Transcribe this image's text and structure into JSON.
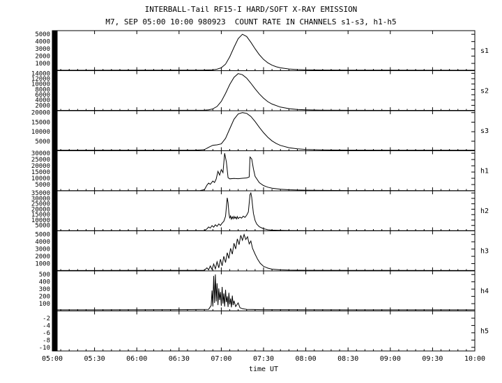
{
  "titles": {
    "line1": "INTERBALL-Tail RF15-I HARD/SOFT X-RAY EMISSION",
    "line2": "M7, SEP 05:00 10:00 980923  COUNT RATE IN CHANNELS s1-s3, h1-h5"
  },
  "colors": {
    "line": "#000000",
    "background": "#ffffff"
  },
  "chart_data": {
    "type": "line",
    "title": "INTERBALL-Tail RF15-I HARD/SOFT X-RAY EMISSION",
    "subtitle": "M7, SEP 05:00 10:00 980923  COUNT RATE IN CHANNELS s1-s3, h1-h5",
    "xlabel": "time UT",
    "x_range": [
      5,
      10
    ],
    "x_tick_hours": [
      5,
      5.5,
      6,
      6.5,
      7,
      7.5,
      8,
      8.5,
      9,
      9.5,
      10
    ],
    "x_tick_labels": [
      "05:00",
      "05:30",
      "06:00",
      "06:30",
      "07:00",
      "07:30",
      "08:00",
      "08:30",
      "09:00",
      "09:30",
      "10:00"
    ],
    "grid": false,
    "legend": "panel labels on right side",
    "panels": [
      {
        "label": "s1",
        "ylim": [
          0,
          5500
        ],
        "yticks": [
          1000,
          2000,
          3000,
          4000,
          5000
        ],
        "left_bar": true,
        "points": [
          [
            5.0,
            60
          ],
          [
            5.5,
            60
          ],
          [
            6.0,
            65
          ],
          [
            6.5,
            70
          ],
          [
            6.8,
            85
          ],
          [
            6.9,
            120
          ],
          [
            6.95,
            200
          ],
          [
            7.0,
            400
          ],
          [
            7.05,
            900
          ],
          [
            7.1,
            1900
          ],
          [
            7.15,
            3200
          ],
          [
            7.2,
            4400
          ],
          [
            7.25,
            5000
          ],
          [
            7.3,
            4700
          ],
          [
            7.35,
            3900
          ],
          [
            7.4,
            3000
          ],
          [
            7.45,
            2200
          ],
          [
            7.5,
            1550
          ],
          [
            7.55,
            1080
          ],
          [
            7.6,
            760
          ],
          [
            7.65,
            540
          ],
          [
            7.7,
            390
          ],
          [
            7.8,
            230
          ],
          [
            7.9,
            150
          ],
          [
            8.0,
            110
          ],
          [
            8.2,
            85
          ],
          [
            8.5,
            72
          ],
          [
            9.0,
            65
          ],
          [
            9.5,
            62
          ],
          [
            10.0,
            60
          ]
        ]
      },
      {
        "label": "s2",
        "ylim": [
          0,
          15000
        ],
        "yticks": [
          2000,
          4000,
          6000,
          8000,
          10000,
          12000,
          14000
        ],
        "left_bar": true,
        "points": [
          [
            5.0,
            130
          ],
          [
            5.5,
            130
          ],
          [
            6.0,
            140
          ],
          [
            6.5,
            150
          ],
          [
            6.8,
            200
          ],
          [
            6.85,
            350
          ],
          [
            6.9,
            700
          ],
          [
            6.95,
            1600
          ],
          [
            7.0,
            3500
          ],
          [
            7.05,
            6500
          ],
          [
            7.1,
            9800
          ],
          [
            7.15,
            12500
          ],
          [
            7.2,
            13900
          ],
          [
            7.25,
            13500
          ],
          [
            7.3,
            12200
          ],
          [
            7.35,
            10300
          ],
          [
            7.4,
            8200
          ],
          [
            7.45,
            6300
          ],
          [
            7.5,
            4700
          ],
          [
            7.55,
            3400
          ],
          [
            7.6,
            2500
          ],
          [
            7.7,
            1350
          ],
          [
            7.8,
            780
          ],
          [
            7.9,
            480
          ],
          [
            8.0,
            330
          ],
          [
            8.2,
            220
          ],
          [
            8.5,
            165
          ],
          [
            9.0,
            140
          ],
          [
            9.5,
            135
          ],
          [
            10.0,
            130
          ]
        ]
      },
      {
        "label": "s3",
        "ylim": [
          0,
          21000
        ],
        "yticks": [
          5000,
          10000,
          15000,
          20000
        ],
        "left_bar": true,
        "points": [
          [
            5.0,
            260
          ],
          [
            5.5,
            260
          ],
          [
            6.0,
            270
          ],
          [
            6.5,
            290
          ],
          [
            6.7,
            330
          ],
          [
            6.8,
            600
          ],
          [
            6.85,
            1800
          ],
          [
            6.9,
            2900
          ],
          [
            6.95,
            3100
          ],
          [
            7.0,
            3600
          ],
          [
            7.05,
            6500
          ],
          [
            7.1,
            11500
          ],
          [
            7.15,
            16500
          ],
          [
            7.2,
            19300
          ],
          [
            7.25,
            20000
          ],
          [
            7.3,
            19600
          ],
          [
            7.35,
            18000
          ],
          [
            7.4,
            15300
          ],
          [
            7.45,
            12300
          ],
          [
            7.5,
            9500
          ],
          [
            7.55,
            7100
          ],
          [
            7.6,
            5200
          ],
          [
            7.65,
            3800
          ],
          [
            7.7,
            2800
          ],
          [
            7.8,
            1600
          ],
          [
            7.9,
            1000
          ],
          [
            8.0,
            680
          ],
          [
            8.2,
            430
          ],
          [
            8.5,
            320
          ],
          [
            9.0,
            280
          ],
          [
            9.5,
            265
          ],
          [
            10.0,
            260
          ]
        ]
      },
      {
        "label": "h1",
        "ylim": [
          0,
          32000
        ],
        "yticks": [
          5000,
          10000,
          15000,
          20000,
          25000,
          30000
        ],
        "left_bar": true,
        "points": [
          [
            5.0,
            150
          ],
          [
            5.5,
            150
          ],
          [
            6.0,
            160
          ],
          [
            6.5,
            170
          ],
          [
            6.75,
            200
          ],
          [
            6.8,
            900
          ],
          [
            6.83,
            4500
          ],
          [
            6.85,
            6200
          ],
          [
            6.87,
            5200
          ],
          [
            6.9,
            7800
          ],
          [
            6.92,
            6600
          ],
          [
            6.94,
            9500
          ],
          [
            6.96,
            15500
          ],
          [
            6.98,
            12500
          ],
          [
            7.0,
            17000
          ],
          [
            7.02,
            14500
          ],
          [
            7.04,
            30000
          ],
          [
            7.06,
            23000
          ],
          [
            7.08,
            10500
          ],
          [
            7.1,
            9600
          ],
          [
            7.15,
            9900
          ],
          [
            7.2,
            9700
          ],
          [
            7.25,
            10000
          ],
          [
            7.3,
            10300
          ],
          [
            7.33,
            11000
          ],
          [
            7.34,
            27000
          ],
          [
            7.36,
            25500
          ],
          [
            7.38,
            17500
          ],
          [
            7.4,
            11500
          ],
          [
            7.45,
            6500
          ],
          [
            7.5,
            4200
          ],
          [
            7.55,
            2900
          ],
          [
            7.6,
            2100
          ],
          [
            7.7,
            1250
          ],
          [
            7.8,
            850
          ],
          [
            7.9,
            620
          ],
          [
            8.0,
            480
          ],
          [
            8.2,
            340
          ],
          [
            8.5,
            250
          ],
          [
            9.0,
            195
          ],
          [
            9.5,
            175
          ],
          [
            10.0,
            160
          ]
        ]
      },
      {
        "label": "h2",
        "ylim": [
          0,
          37000
        ],
        "yticks": [
          5000,
          10000,
          15000,
          20000,
          25000,
          30000,
          35000
        ],
        "left_bar": true,
        "points": [
          [
            5.0,
            150
          ],
          [
            5.5,
            150
          ],
          [
            6.0,
            160
          ],
          [
            6.5,
            175
          ],
          [
            6.8,
            250
          ],
          [
            6.83,
            1800
          ],
          [
            6.85,
            3600
          ],
          [
            6.87,
            2600
          ],
          [
            6.89,
            4800
          ],
          [
            6.91,
            3400
          ],
          [
            6.93,
            5600
          ],
          [
            6.95,
            4200
          ],
          [
            6.97,
            6400
          ],
          [
            6.99,
            5000
          ],
          [
            7.01,
            7200
          ],
          [
            7.03,
            8800
          ],
          [
            7.05,
            13500
          ],
          [
            7.06,
            22000
          ],
          [
            7.07,
            30500
          ],
          [
            7.08,
            26000
          ],
          [
            7.09,
            16500
          ],
          [
            7.1,
            11500
          ],
          [
            7.11,
            13800
          ],
          [
            7.12,
            10800
          ],
          [
            7.13,
            13000
          ],
          [
            7.14,
            11200
          ],
          [
            7.15,
            13400
          ],
          [
            7.16,
            11600
          ],
          [
            7.17,
            12800
          ],
          [
            7.18,
            11000
          ],
          [
            7.19,
            13200
          ],
          [
            7.2,
            11400
          ],
          [
            7.22,
            12600
          ],
          [
            7.24,
            11800
          ],
          [
            7.26,
            13600
          ],
          [
            7.28,
            12400
          ],
          [
            7.3,
            14500
          ],
          [
            7.32,
            17500
          ],
          [
            7.34,
            33500
          ],
          [
            7.35,
            35000
          ],
          [
            7.36,
            31000
          ],
          [
            7.37,
            23500
          ],
          [
            7.38,
            16000
          ],
          [
            7.4,
            9500
          ],
          [
            7.42,
            6200
          ],
          [
            7.45,
            3800
          ],
          [
            7.5,
            1900
          ],
          [
            7.55,
            1050
          ],
          [
            7.6,
            640
          ],
          [
            7.7,
            380
          ],
          [
            7.8,
            280
          ],
          [
            8.0,
            210
          ],
          [
            8.5,
            175
          ],
          [
            9.0,
            160
          ],
          [
            9.5,
            155
          ],
          [
            10.0,
            150
          ]
        ]
      },
      {
        "label": "h3",
        "ylim": [
          0,
          5500
        ],
        "yticks": [
          1000,
          2000,
          3000,
          4000,
          5000
        ],
        "left_bar": true,
        "points": [
          [
            5.0,
            60
          ],
          [
            5.5,
            60
          ],
          [
            6.0,
            65
          ],
          [
            6.5,
            70
          ],
          [
            6.8,
            85
          ],
          [
            6.83,
            420
          ],
          [
            6.85,
            140
          ],
          [
            6.87,
            680
          ],
          [
            6.89,
            190
          ],
          [
            6.91,
            950
          ],
          [
            6.93,
            280
          ],
          [
            6.95,
            1250
          ],
          [
            6.97,
            420
          ],
          [
            6.99,
            1600
          ],
          [
            7.01,
            700
          ],
          [
            7.03,
            2000
          ],
          [
            7.05,
            1150
          ],
          [
            7.07,
            2500
          ],
          [
            7.09,
            1700
          ],
          [
            7.11,
            3100
          ],
          [
            7.13,
            2300
          ],
          [
            7.15,
            3800
          ],
          [
            7.17,
            3000
          ],
          [
            7.19,
            4400
          ],
          [
            7.21,
            3600
          ],
          [
            7.23,
            4900
          ],
          [
            7.25,
            4200
          ],
          [
            7.27,
            5000
          ],
          [
            7.29,
            4300
          ],
          [
            7.31,
            4700
          ],
          [
            7.33,
            3700
          ],
          [
            7.35,
            4100
          ],
          [
            7.37,
            3100
          ],
          [
            7.4,
            2300
          ],
          [
            7.43,
            1600
          ],
          [
            7.46,
            1050
          ],
          [
            7.5,
            620
          ],
          [
            7.55,
            380
          ],
          [
            7.6,
            240
          ],
          [
            7.7,
            140
          ],
          [
            7.8,
            105
          ],
          [
            8.0,
            85
          ],
          [
            8.5,
            72
          ],
          [
            9.0,
            66
          ],
          [
            9.5,
            62
          ],
          [
            10.0,
            60
          ]
        ]
      },
      {
        "label": "h4",
        "ylim": [
          0,
          550
        ],
        "yticks": [
          100,
          200,
          300,
          400,
          500
        ],
        "left_bar": true,
        "points": [
          [
            5.0,
            15
          ],
          [
            5.5,
            15
          ],
          [
            6.0,
            16
          ],
          [
            6.5,
            18
          ],
          [
            6.85,
            22
          ],
          [
            6.88,
            75
          ],
          [
            6.89,
            280
          ],
          [
            6.9,
            60
          ],
          [
            6.91,
            480
          ],
          [
            6.92,
            110
          ],
          [
            6.93,
            500
          ],
          [
            6.94,
            130
          ],
          [
            6.95,
            380
          ],
          [
            6.96,
            80
          ],
          [
            6.97,
            310
          ],
          [
            6.98,
            150
          ],
          [
            6.99,
            260
          ],
          [
            7.0,
            70
          ],
          [
            7.01,
            330
          ],
          [
            7.02,
            100
          ],
          [
            7.03,
            240
          ],
          [
            7.04,
            60
          ],
          [
            7.05,
            290
          ],
          [
            7.06,
            120
          ],
          [
            7.07,
            200
          ],
          [
            7.08,
            55
          ],
          [
            7.09,
            250
          ],
          [
            7.1,
            90
          ],
          [
            7.11,
            170
          ],
          [
            7.12,
            50
          ],
          [
            7.13,
            210
          ],
          [
            7.14,
            80
          ],
          [
            7.15,
            140
          ],
          [
            7.17,
            60
          ],
          [
            7.2,
            110
          ],
          [
            7.22,
            45
          ],
          [
            7.25,
            30
          ],
          [
            7.3,
            22
          ],
          [
            7.5,
            18
          ],
          [
            8.0,
            16
          ],
          [
            9.0,
            15
          ],
          [
            10.0,
            15
          ]
        ]
      },
      {
        "label": "h5",
        "ylim": [
          -11,
          0
        ],
        "yticks": [
          -10,
          -8,
          -6,
          -4,
          -2
        ],
        "left_bar": true,
        "points": [
          [
            5.0,
            0
          ],
          [
            10.0,
            0
          ]
        ]
      }
    ]
  }
}
